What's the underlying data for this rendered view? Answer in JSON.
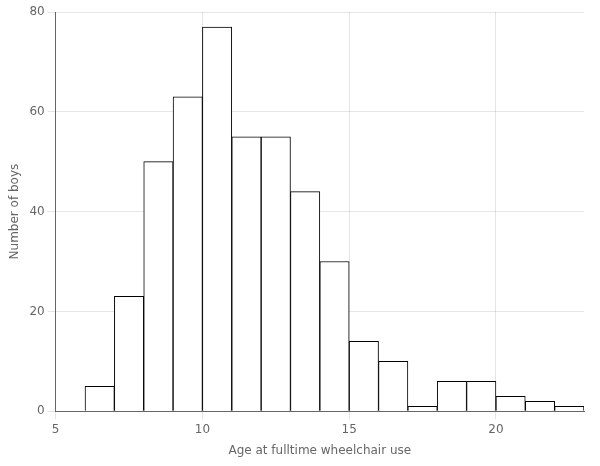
{
  "chart_data": {
    "type": "histogram",
    "bins": [
      6,
      7,
      8,
      9,
      10,
      11,
      12,
      13,
      14,
      15,
      16,
      17,
      18,
      19,
      20,
      21,
      22,
      23
    ],
    "values": [
      5,
      23,
      50,
      63,
      77,
      55,
      55,
      44,
      30,
      14,
      10,
      1,
      6,
      6,
      3,
      2,
      1
    ],
    "xlabel": "Age at fulltime wheelchair use",
    "ylabel": "Number of boys",
    "xlim": [
      5,
      23
    ],
    "ylim": [
      0,
      80
    ],
    "xticks": [
      5,
      10,
      15,
      20
    ],
    "yticks": [
      0,
      20,
      40,
      60,
      80
    ],
    "color": "#FFFFFF",
    "grid": true
  }
}
